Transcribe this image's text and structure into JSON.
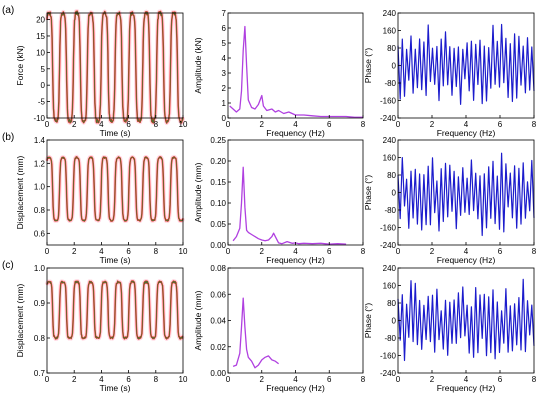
{
  "panel_letters": [
    "(a)",
    "(b)",
    "(c)"
  ],
  "colors": {
    "time_raw": "#ff3333",
    "time_filtered": "#556b2f",
    "amplitude": "#b040e0",
    "phase": "#1c1ccc",
    "axis": "#000000",
    "raw_halo": "#ffc0d0"
  },
  "chart_data": [
    {
      "id": "a-time",
      "type": "line",
      "xlabel": "Time (s)",
      "ylabel": "Force (kN)",
      "xlim": [
        0,
        10
      ],
      "ylim": [
        -10,
        22
      ],
      "xticks": [
        0,
        2,
        4,
        6,
        8,
        10
      ],
      "yticks": [
        -10,
        -5,
        0,
        5,
        10,
        15,
        20
      ],
      "series": [
        {
          "role": "time",
          "mean": 5.5,
          "amp": 16.5,
          "period": 1.02,
          "sharp": 2.4,
          "noise": 1.2
        }
      ]
    },
    {
      "id": "a-amp",
      "type": "line",
      "xlabel": "Frequency (Hz)",
      "ylabel": "Amplitude (kN)",
      "xlim": [
        0,
        8
      ],
      "ylim": [
        0,
        7
      ],
      "xticks": [
        0,
        2,
        4,
        6,
        8
      ],
      "yticks": [
        0,
        1,
        2,
        3,
        4,
        5,
        6,
        7
      ],
      "series": [
        {
          "role": "amplitude",
          "x": [
            0.1,
            0.3,
            0.5,
            0.7,
            0.8,
            0.9,
            1.0,
            1.1,
            1.2,
            1.4,
            1.6,
            1.8,
            2.0,
            2.1,
            2.3,
            2.6,
            2.8,
            3.0,
            3.3,
            3.6,
            4.0,
            4.5,
            5.0,
            5.5,
            6.0,
            6.5,
            7.0,
            7.5,
            8.0
          ],
          "y": [
            0.8,
            0.6,
            0.4,
            0.6,
            1.8,
            4.5,
            6.1,
            3.5,
            1.2,
            0.7,
            0.6,
            0.9,
            1.5,
            0.8,
            0.5,
            0.6,
            0.4,
            0.5,
            0.3,
            0.4,
            0.2,
            0.2,
            0.15,
            0.1,
            0.1,
            0.1,
            0.1,
            0.05,
            0.05
          ]
        }
      ]
    },
    {
      "id": "a-phase",
      "type": "line",
      "xlabel": "Frequency (Hz)",
      "ylabel": "Phase (°)",
      "xlim": [
        0,
        8
      ],
      "ylim": [
        -240,
        240
      ],
      "xticks": [
        0,
        2,
        4,
        6,
        8
      ],
      "yticks": [
        -240,
        -160,
        -80,
        0,
        80,
        160,
        240
      ],
      "series": [
        {
          "role": "phase",
          "n": 64,
          "seed": 3
        }
      ]
    },
    {
      "id": "b-time",
      "type": "line",
      "xlabel": "Time (s)",
      "ylabel": "Displacement (mm)",
      "xlim": [
        0,
        10
      ],
      "ylim": [
        0.5,
        1.4
      ],
      "xticks": [
        0,
        2,
        4,
        6,
        8,
        10
      ],
      "yticks": [
        0.6,
        0.8,
        1.0,
        1.2,
        1.4
      ],
      "series": [
        {
          "role": "time",
          "mean": 0.98,
          "amp": 0.27,
          "period": 1.02,
          "sharp": 2.6,
          "noise": 0.012
        }
      ]
    },
    {
      "id": "b-amp",
      "type": "line",
      "xlabel": "Frequency (Hz)",
      "ylabel": "Amplitude (mm)",
      "xlim": [
        0,
        8
      ],
      "ylim": [
        0,
        0.25
      ],
      "xticks": [
        0,
        2,
        4,
        6,
        8
      ],
      "yticks": [
        0.0,
        0.05,
        0.1,
        0.15,
        0.2,
        0.25
      ],
      "series": [
        {
          "role": "amplitude",
          "x": [
            0.3,
            0.5,
            0.7,
            0.8,
            0.9,
            1.0,
            1.1,
            1.2,
            1.4,
            1.6,
            1.8,
            2.0,
            2.2,
            2.4,
            2.6,
            2.7,
            2.8,
            3.0,
            3.2,
            3.5,
            3.8,
            4.0,
            4.2,
            4.5,
            5.0,
            5.5,
            6.0,
            6.5,
            7.0
          ],
          "y": [
            0.01,
            0.02,
            0.04,
            0.1,
            0.185,
            0.09,
            0.035,
            0.03,
            0.025,
            0.02,
            0.015,
            0.012,
            0.01,
            0.012,
            0.02,
            0.028,
            0.02,
            0.005,
            0.003,
            0.008,
            0.004,
            0.005,
            0.003,
            0.004,
            0.003,
            0.004,
            0.002,
            0.003,
            0.002
          ]
        }
      ]
    },
    {
      "id": "b-phase",
      "type": "line",
      "xlabel": "Frequency (Hz)",
      "ylabel": "Phase (°)",
      "xlim": [
        0,
        8
      ],
      "ylim": [
        -240,
        240
      ],
      "xticks": [
        0,
        2,
        4,
        6,
        8
      ],
      "yticks": [
        -240,
        -160,
        -80,
        0,
        80,
        160,
        240
      ],
      "series": [
        {
          "role": "phase",
          "n": 64,
          "seed": 11
        }
      ]
    },
    {
      "id": "c-time",
      "type": "line",
      "xlabel": "Time (s)",
      "ylabel": "Displacement (mm)",
      "xlim": [
        0,
        10
      ],
      "ylim": [
        0.7,
        1.0
      ],
      "xticks": [
        0,
        2,
        4,
        6,
        8,
        10
      ],
      "yticks": [
        0.7,
        0.8,
        0.9,
        1.0
      ],
      "series": [
        {
          "role": "time",
          "mean": 0.88,
          "amp": 0.08,
          "period": 1.02,
          "sharp": 2.8,
          "noise": 0.006
        }
      ]
    },
    {
      "id": "c-amp",
      "type": "line",
      "xlabel": "Frequency (Hz)",
      "ylabel": "Amplitude (mm)",
      "xlim": [
        0,
        8
      ],
      "ylim": [
        0,
        0.08
      ],
      "xticks": [
        0,
        2,
        4,
        6,
        8
      ],
      "yticks": [
        0.0,
        0.02,
        0.04,
        0.06,
        0.08
      ],
      "series": [
        {
          "role": "amplitude",
          "x": [
            0.3,
            0.5,
            0.7,
            0.8,
            0.9,
            1.0,
            1.1,
            1.2,
            1.4,
            1.6,
            1.8,
            2.0,
            2.2,
            2.4,
            2.6,
            2.8,
            3.0
          ],
          "y": [
            0.005,
            0.006,
            0.015,
            0.035,
            0.057,
            0.035,
            0.018,
            0.012,
            0.009,
            0.004,
            0.006,
            0.01,
            0.012,
            0.013,
            0.01,
            0.009,
            0.007
          ]
        }
      ]
    },
    {
      "id": "c-phase",
      "type": "line",
      "xlabel": "Frequency (Hz)",
      "ylabel": "Phase (°)",
      "xlim": [
        0,
        8
      ],
      "ylim": [
        -240,
        240
      ],
      "xticks": [
        0,
        2,
        4,
        6,
        8
      ],
      "yticks": [
        -240,
        -160,
        -80,
        0,
        80,
        160,
        240
      ],
      "series": [
        {
          "role": "phase",
          "n": 64,
          "seed": 27
        }
      ]
    }
  ]
}
